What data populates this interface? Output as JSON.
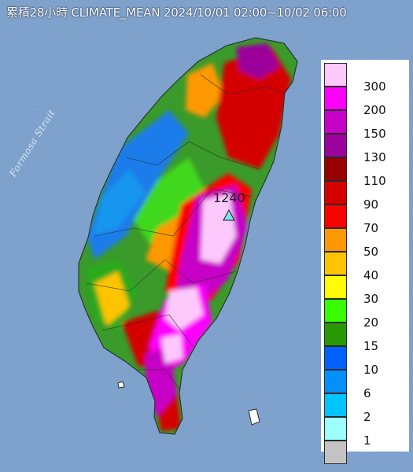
{
  "title": "累積28小時 CLIMATE_MEAN 2024/10/01 02:00~10/02 06:00",
  "sea_label": "Formosa Strait",
  "peak": {
    "label": "1240",
    "marker": "triangle-marker"
  },
  "colors": {
    "sea": "#6f97c6",
    "land_outline": "#2b2b2b"
  },
  "legend": {
    "labels": [
      "300",
      "200",
      "150",
      "130",
      "110",
      "90",
      "70",
      "50",
      "40",
      "30",
      "20",
      "15",
      "10",
      "6",
      "2",
      "1"
    ],
    "colors": [
      "#fdc9fd",
      "#fd00fd",
      "#c602c6",
      "#9b039b",
      "#980000",
      "#d40000",
      "#fe0000",
      "#fe9800",
      "#fec400",
      "#fefe00",
      "#38fd00",
      "#269a00",
      "#0160fe",
      "#0190fe",
      "#00c4fe",
      "#9cfefe",
      "#c3c3c3"
    ]
  }
}
